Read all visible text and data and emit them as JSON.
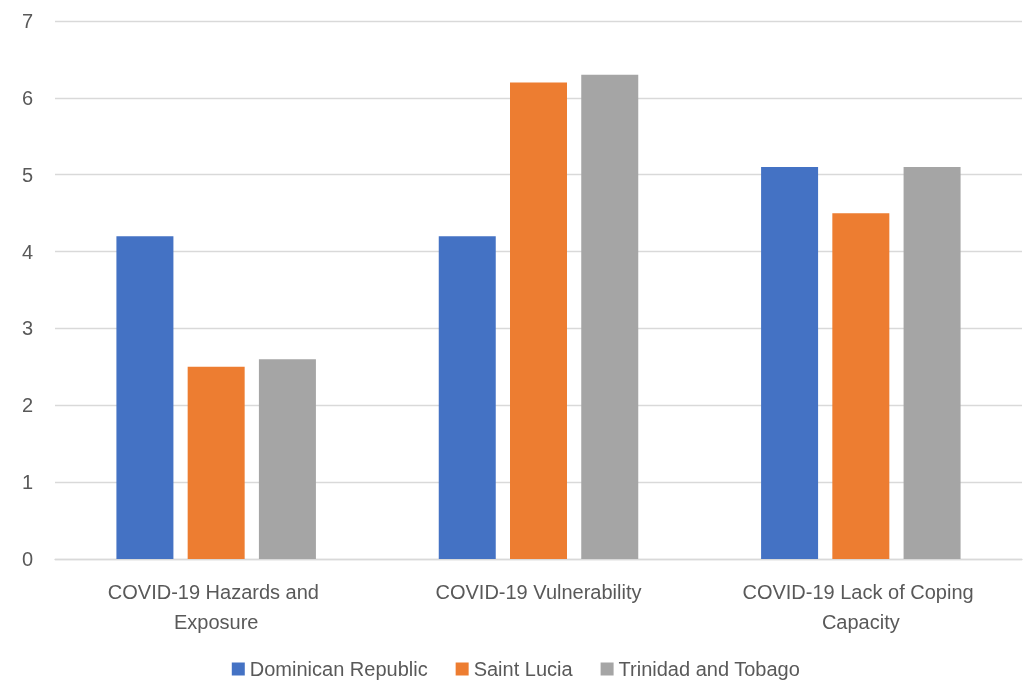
{
  "chart_data": {
    "type": "bar",
    "categories": [
      "COVID-19 Hazards and Exposure",
      "COVID-19 Vulnerability",
      "COVID-19 Lack of Coping Capacity"
    ],
    "series": [
      {
        "name": "Dominican Republic",
        "color": "#4472c4",
        "values": [
          4.2,
          4.2,
          5.1
        ]
      },
      {
        "name": "Saint Lucia",
        "color": "#ed7d31",
        "values": [
          2.5,
          6.2,
          4.5
        ]
      },
      {
        "name": "Trinidad and Tobago",
        "color": "#a5a5a5",
        "values": [
          2.6,
          6.3,
          5.1
        ]
      }
    ],
    "ylim": [
      0,
      7
    ],
    "yticks": [
      0,
      1,
      2,
      3,
      4,
      5,
      6,
      7
    ],
    "grid": "y",
    "legend": "bottom"
  }
}
